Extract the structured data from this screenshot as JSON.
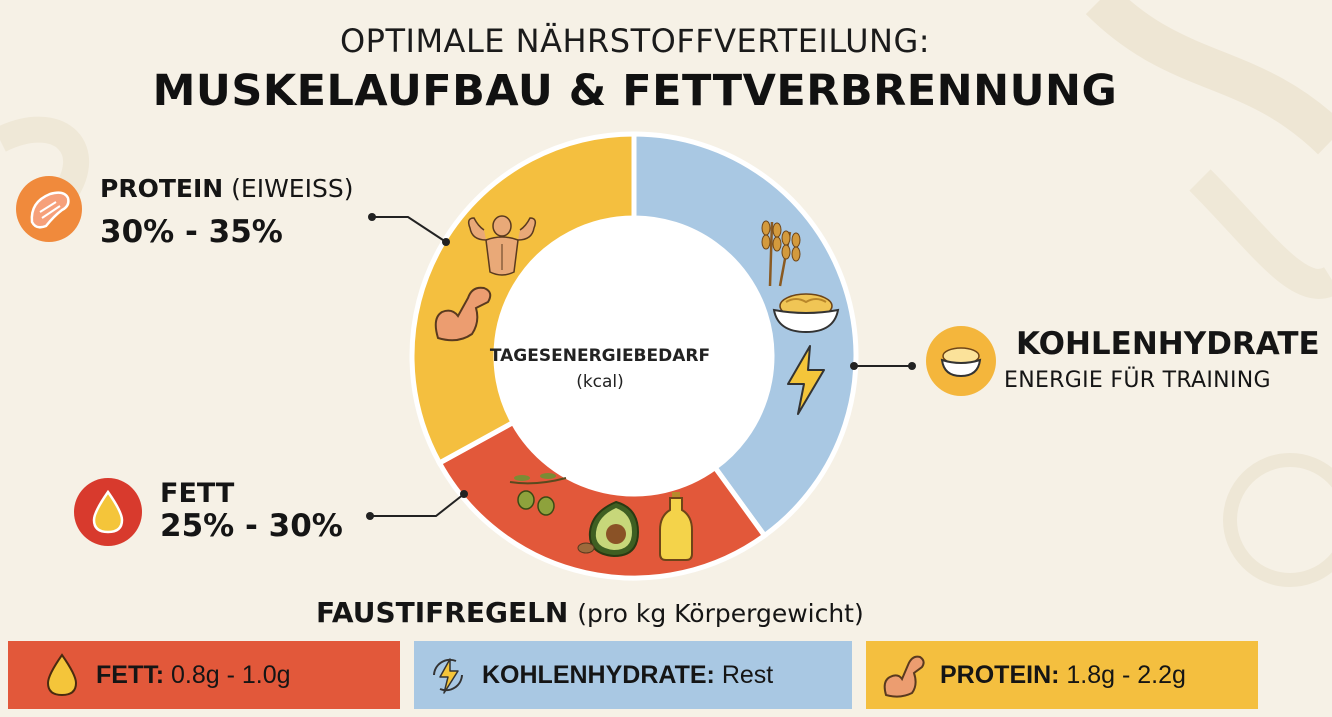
{
  "header": {
    "line1": "OPTIMALE NÄHRSTOFFVERTEILUNG:",
    "line2": "MUSKELAUFBAU & FETTVERBRENNUNG"
  },
  "labels": {
    "protein": {
      "name": "PROTEIN",
      "paren": "(EIWEISS)",
      "range": "30% - 35%"
    },
    "carbs": {
      "name": "KOHLENHYDRATE",
      "sub": "ENERGIE FÜR TRAINING"
    },
    "fat": {
      "name": "FETT",
      "range": "25% - 30%"
    }
  },
  "center": {
    "line1": "TAGESENERGIEBEDARF",
    "line2": "(kcal)"
  },
  "rules": {
    "title": "FAUSTIFREGELN",
    "subtitle": "(pro kg Körpergewicht)",
    "fat": {
      "label": "FETT:",
      "value": "0.8g - 1.0g"
    },
    "carbs": {
      "label": "KOHLENHYDRATE:",
      "value": "Rest"
    },
    "protein": {
      "label": "PROTEIN:",
      "value": "1.8g - 2.2g"
    }
  },
  "colors": {
    "protein": "#f4bf3f",
    "carbs": "#a9c8e3",
    "fat": "#e2583a",
    "fat_dark": "#d83a2d",
    "protein_icon": "#f08a3c"
  },
  "chart_data": {
    "type": "pie",
    "variant": "donut",
    "title": "TAGESENERGIEBEDARF (kcal)",
    "segments": [
      {
        "name": "KOHLENHYDRATE",
        "value": 40,
        "color": "#a9c8e3"
      },
      {
        "name": "FETT",
        "value": 27,
        "color": "#e2583a"
      },
      {
        "name": "PROTEIN",
        "value": 33,
        "color": "#f4bf3f"
      }
    ]
  }
}
